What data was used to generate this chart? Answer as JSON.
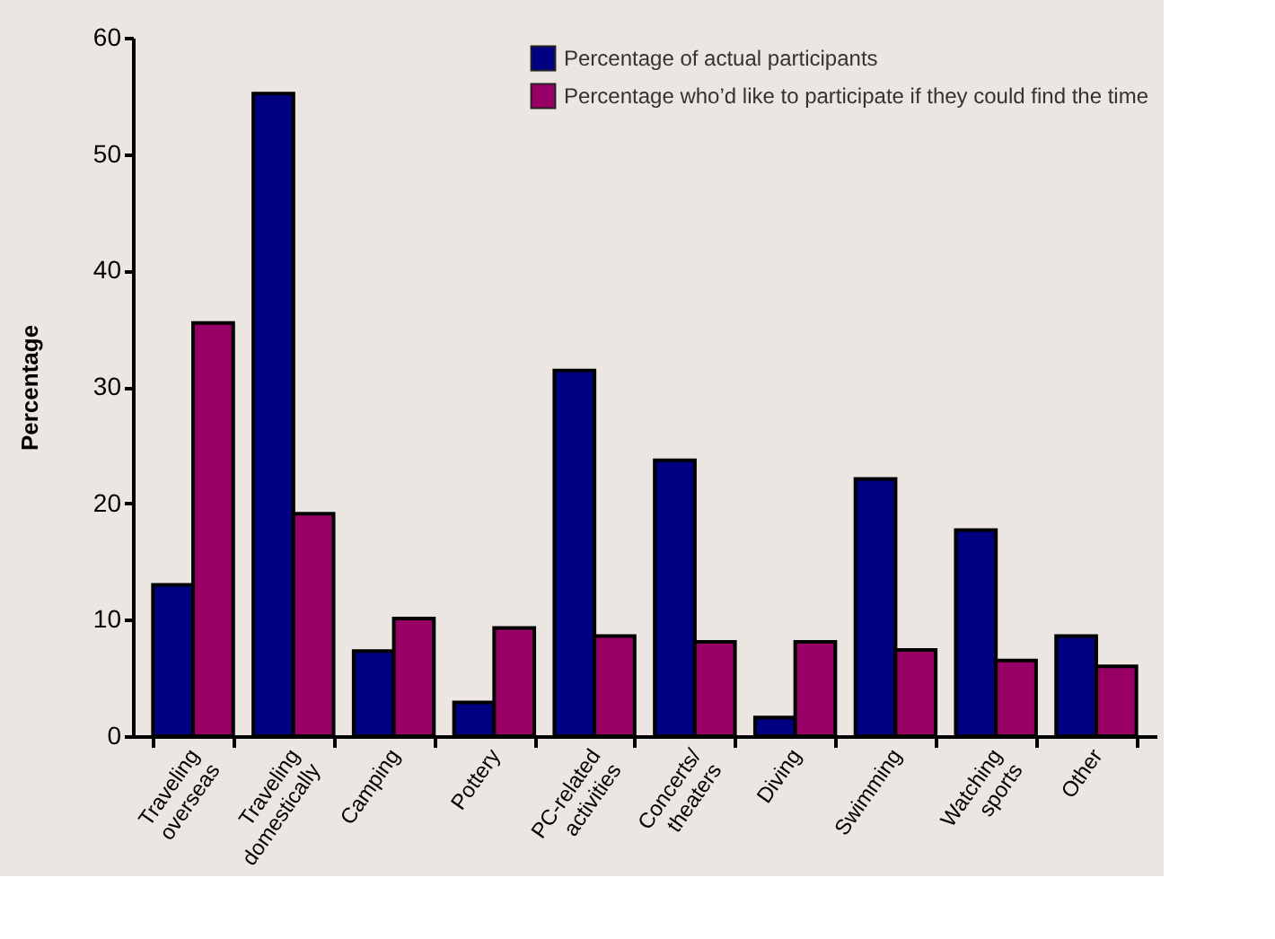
{
  "chart_data": {
    "type": "bar",
    "ylabel": "Percentage",
    "categories": [
      "Traveling overseas",
      "Traveling domestically",
      "Camping",
      "Pottery",
      "PC-related activities",
      "Concerts/ theaters",
      "Diving",
      "Swimming",
      "Watching sports",
      "Other"
    ],
    "series": [
      {
        "name": "Percentage of actual participants",
        "color": "#000080",
        "values": [
          13,
          55.2,
          7.3,
          2.9,
          31.4,
          23.7,
          1.6,
          22.1,
          17.7,
          8.6
        ]
      },
      {
        "name": "Percentage who’d like to participate if they could find the time",
        "color": "#990066",
        "values": [
          35.5,
          19.1,
          10.1,
          9.3,
          8.6,
          8.1,
          8.1,
          7.4,
          6.5,
          6.0
        ]
      }
    ],
    "ylim": [
      0,
      60
    ],
    "yticks": [
      0,
      10,
      20,
      30,
      40,
      50,
      60
    ],
    "grid": false,
    "legend": "top right"
  }
}
